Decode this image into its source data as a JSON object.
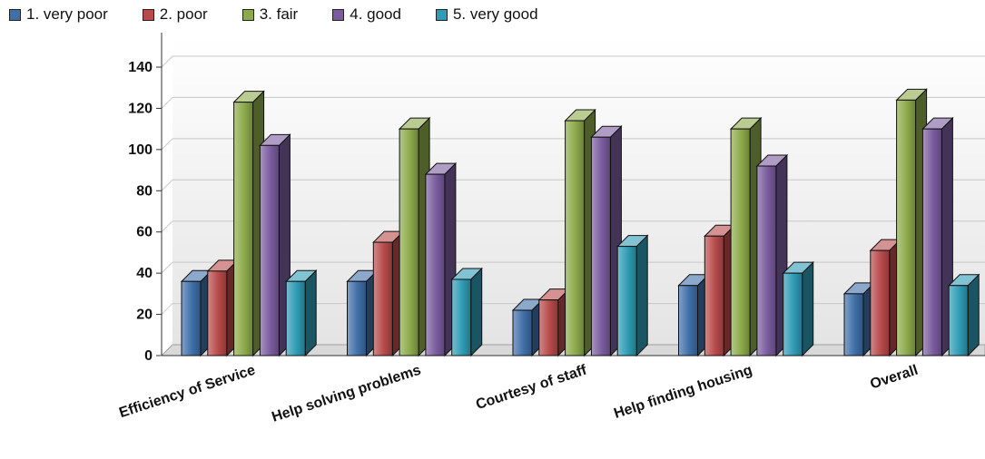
{
  "chart_data": {
    "type": "bar",
    "categories": [
      "Efficiency of Service",
      "Help solving problems",
      "Courtesy of staff",
      "Help finding housing",
      "Overall"
    ],
    "series": [
      {
        "name": "1. very poor",
        "color": "#3f6fa8",
        "values": [
          36,
          36,
          22,
          34,
          30
        ]
      },
      {
        "name": "2. poor",
        "color": "#b84a4a",
        "values": [
          41,
          55,
          27,
          58,
          51
        ]
      },
      {
        "name": "3. fair",
        "color": "#8caa4a",
        "values": [
          123,
          110,
          114,
          110,
          124
        ]
      },
      {
        "name": "4. good",
        "color": "#7a5c9e",
        "values": [
          102,
          88,
          106,
          92,
          110
        ]
      },
      {
        "name": "5. very good",
        "color": "#2f9bb5",
        "values": [
          36,
          37,
          53,
          40,
          34
        ]
      }
    ],
    "yticks": [
      "0",
      "20",
      "40",
      "60",
      "80",
      "100",
      "120",
      "140"
    ],
    "ylim": [
      0,
      150
    ],
    "grid": true,
    "legend_position": "top-left"
  }
}
